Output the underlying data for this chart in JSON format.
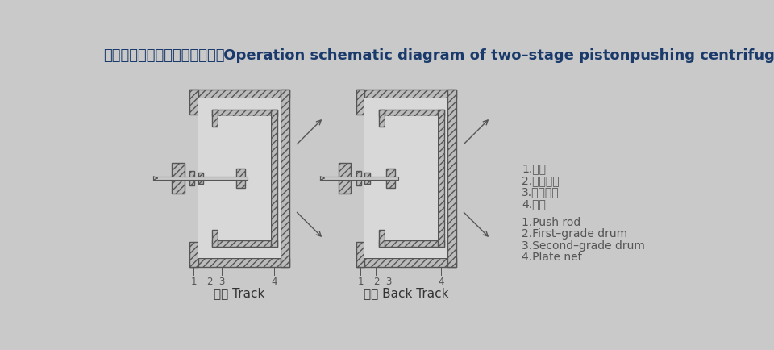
{
  "bg_color": "#c9c9c9",
  "title_cn": "双级活塞推料离心机工作示意图",
  "title_en": " Operation schematic diagram of two–stage pistonpushing centrifuge",
  "title_color": "#1a3a6b",
  "title_fontsize": 13,
  "line_color": "#555555",
  "label1_cn": "1.推杆",
  "label2_cn": "2.一级转鼓",
  "label3_cn": "3.二级转鼓",
  "label4_cn": "4.板网",
  "label1_en": "1.Push rod",
  "label2_en": "2.First–grade drum",
  "label3_en": "3.Second–grade drum",
  "label4_en": "4.Plate net",
  "caption_left": "进程 Track",
  "caption_right": "返程 Back Track",
  "caption_color": "#333333",
  "label_color": "#555555",
  "lc": "#555555",
  "fc_hatch": "#bbbbbb",
  "fc_inner": "#d5d5d5"
}
